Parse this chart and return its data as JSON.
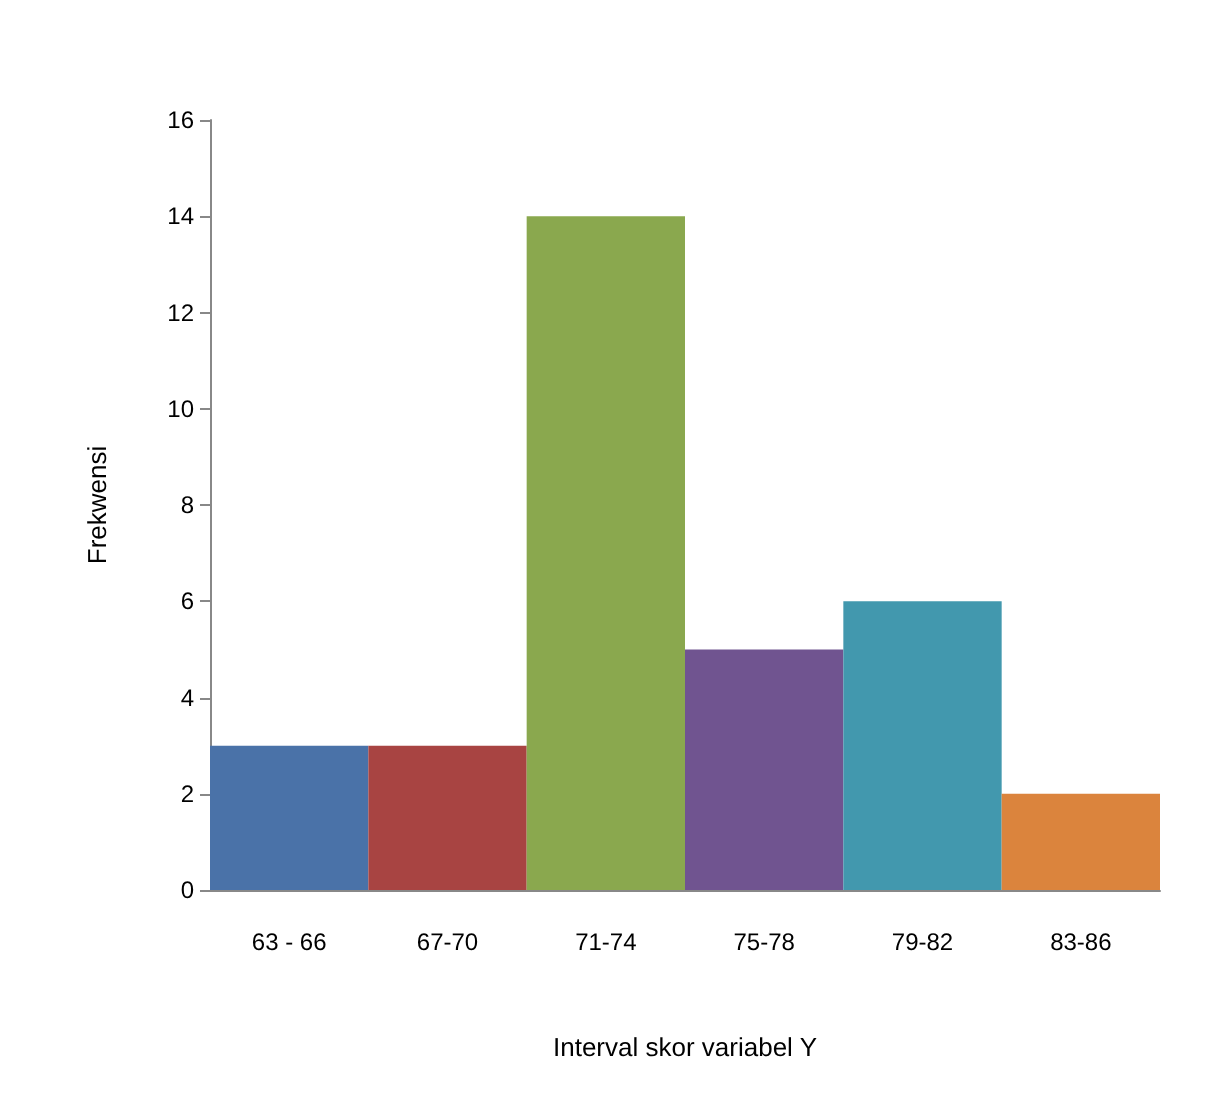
{
  "chart_data": {
    "type": "bar",
    "xlabel": "Interval skor variabel Y",
    "ylabel": "Frekwensi",
    "categories": [
      "63 - 66",
      "67-70",
      "71-74",
      "75-78",
      "79-82",
      "83-86"
    ],
    "values": [
      3,
      3,
      14,
      5,
      6,
      2
    ],
    "colors": [
      "#4a72a8",
      "#a84442",
      "#8aa84e",
      "#705490",
      "#4298ae",
      "#db843d"
    ],
    "ylim": [
      0,
      16
    ],
    "yticks": [
      0,
      2,
      4,
      6,
      8,
      10,
      12,
      14,
      16
    ]
  }
}
